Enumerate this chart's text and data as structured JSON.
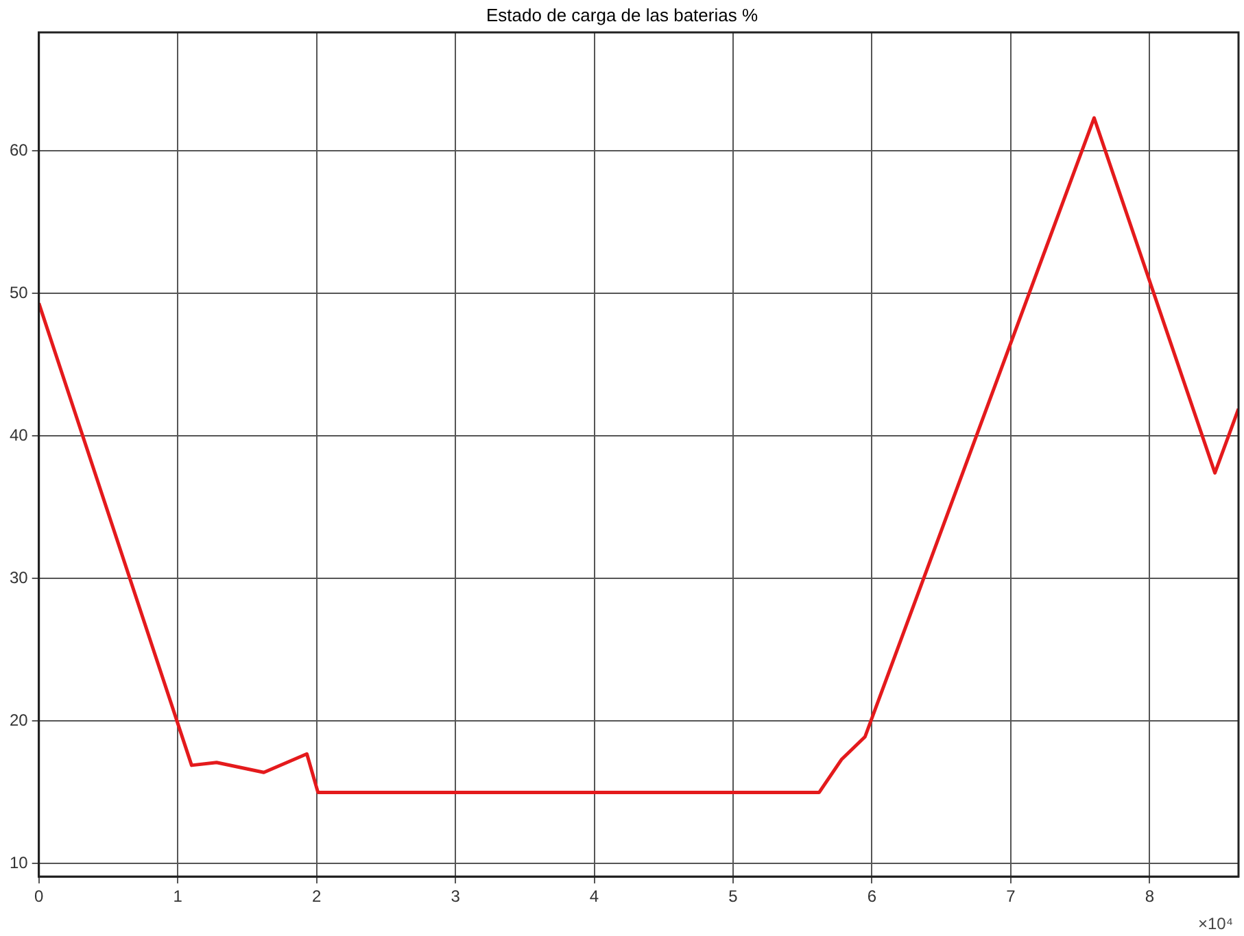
{
  "chart_data": {
    "type": "line",
    "title": "Estado de carga de las baterias %",
    "x": [
      0,
      1.1,
      1.28,
      1.62,
      1.93,
      2.01,
      5.62,
      5.78,
      5.95,
      7.6,
      8.47,
      8.64
    ],
    "series": [
      {
        "color": "#e41a1c",
        "values": [
          49.3,
          16.9,
          17.1,
          16.4,
          17.7,
          15.0,
          15.0,
          17.3,
          18.9,
          62.3,
          37.4,
          41.9
        ]
      }
    ],
    "xlim": [
      0,
      8.64
    ],
    "ylim": [
      9.1,
      68.3
    ],
    "xticks": [
      0,
      1,
      2,
      3,
      4,
      5,
      6,
      7,
      8
    ],
    "yticks": [
      10,
      20,
      30,
      40,
      50,
      60
    ],
    "annotations": [
      "×10⁴"
    ],
    "grid": true,
    "legend": false,
    "marker": "none",
    "line_style": "solid"
  }
}
